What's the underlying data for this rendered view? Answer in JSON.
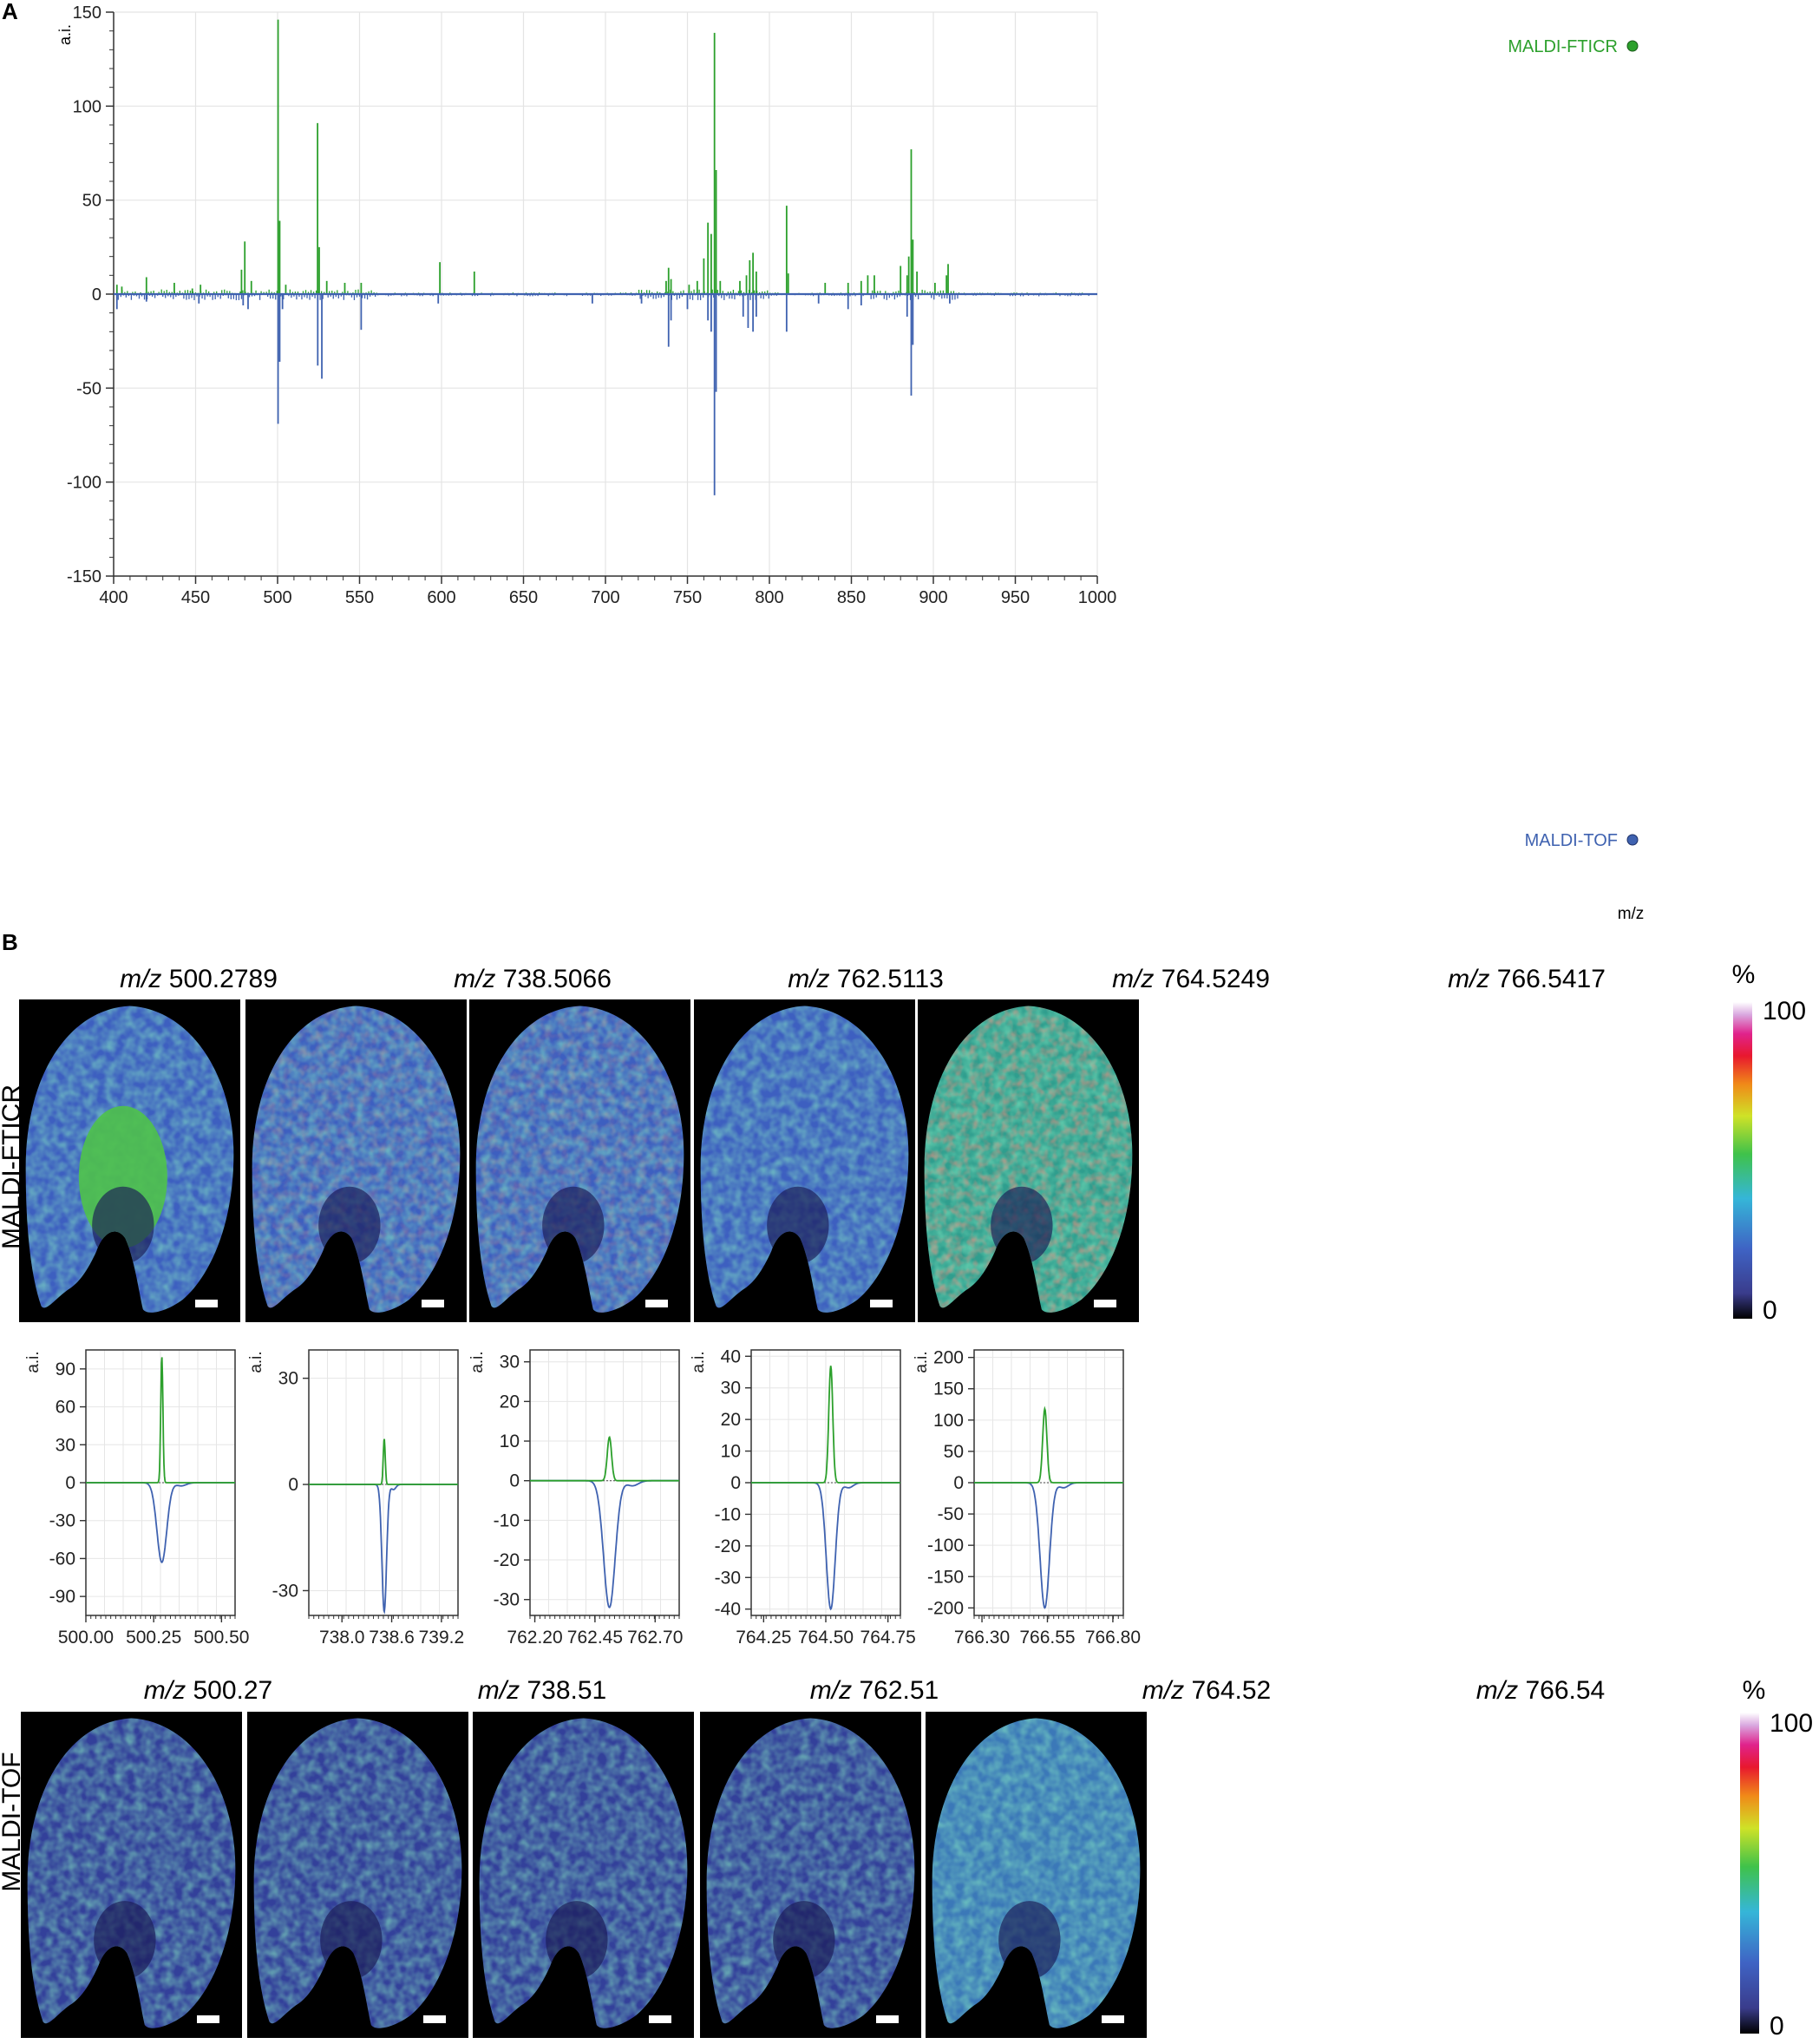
{
  "panel_a": {
    "label": "A",
    "y_unit": "a.i.",
    "x_unit": "m/z",
    "yticks": [
      150,
      100,
      50,
      0,
      -50,
      -100,
      -150
    ],
    "xticks": [
      400,
      450,
      500,
      550,
      600,
      650,
      700,
      750,
      800,
      850,
      900,
      950,
      1000
    ],
    "legend_top": "MALDI-FTICR",
    "legend_bottom": "MALDI-TOF"
  },
  "panel_b": {
    "label": "B",
    "row_fticr": "MALDI-FTICR",
    "row_tof": "MALDI-TOF",
    "fticr_titles": [
      {
        "italic": "m/z",
        "value": " 500.2789"
      },
      {
        "italic": "m/z",
        "value": " 738.5066"
      },
      {
        "italic": "m/z",
        "value": " 762.5113"
      },
      {
        "italic": "m/z",
        "value": " 764.5249"
      },
      {
        "italic": "m/z",
        "value": " 766.5417"
      }
    ],
    "tof_titles": [
      {
        "italic": "m/z",
        "value": " 500.27"
      },
      {
        "italic": "m/z",
        "value": " 738.51"
      },
      {
        "italic": "m/z",
        "value": " 762.51"
      },
      {
        "italic": "m/z",
        "value": " 764.52"
      },
      {
        "italic": "m/z",
        "value": " 766.54"
      }
    ],
    "colorbar": {
      "unit": "%",
      "max": "100",
      "min": "0"
    },
    "mini_y_unit": "a.i."
  },
  "colors": {
    "fticr": "#2ca02c",
    "tof": "#3f62b0"
  },
  "chart_data": [
    {
      "type": "line",
      "title": "",
      "xlabel": "m/z",
      "ylabel": "a.i.",
      "xlim": [
        400,
        1000
      ],
      "ylim": [
        -150,
        150
      ],
      "grid": true,
      "legend": "top-right / bottom-right",
      "series": [
        {
          "name": "MALDI-FTICR",
          "color": "#2ca02c",
          "peaks": [
            [
              402,
              5
            ],
            [
              405,
              4
            ],
            [
              420,
              9
            ],
            [
              437,
              6
            ],
            [
              448,
              3
            ],
            [
              453,
              5
            ],
            [
              478,
              13
            ],
            [
              480,
              28
            ],
            [
              484,
              7
            ],
            [
              500.3,
              146
            ],
            [
              501.3,
              39
            ],
            [
              505,
              5
            ],
            [
              524.4,
              91
            ],
            [
              525.4,
              25
            ],
            [
              530,
              7
            ],
            [
              541,
              6
            ],
            [
              551,
              6
            ],
            [
              599,
              17
            ],
            [
              620,
              12
            ],
            [
              737,
              7
            ],
            [
              738.5,
              14
            ],
            [
              740,
              8
            ],
            [
              751,
              5
            ],
            [
              756,
              7
            ],
            [
              760,
              19
            ],
            [
              762.5,
              38
            ],
            [
              764.5,
              32
            ],
            [
              766.5,
              139
            ],
            [
              767.5,
              66
            ],
            [
              770,
              7
            ],
            [
              782,
              7
            ],
            [
              786,
              10
            ],
            [
              788,
              18
            ],
            [
              790,
              22
            ],
            [
              792,
              12
            ],
            [
              810.5,
              47
            ],
            [
              811.5,
              11
            ],
            [
              834,
              6
            ],
            [
              848,
              6
            ],
            [
              856,
              7
            ],
            [
              860,
              10
            ],
            [
              864,
              10
            ],
            [
              880,
              15
            ],
            [
              884,
              10
            ],
            [
              885,
              20
            ],
            [
              886.5,
              77
            ],
            [
              887.5,
              29
            ],
            [
              890,
              12
            ],
            [
              901,
              6
            ],
            [
              908,
              10
            ],
            [
              909,
              16
            ]
          ]
        },
        {
          "name": "MALDI-TOF",
          "color": "#3f62b0",
          "peaks": [
            [
              402,
              -8
            ],
            [
              420,
              -4
            ],
            [
              452,
              -5
            ],
            [
              479,
              -6
            ],
            [
              482,
              -8
            ],
            [
              500.3,
              -69
            ],
            [
              501.3,
              -36
            ],
            [
              503,
              -8
            ],
            [
              524.5,
              -38
            ],
            [
              527,
              -45
            ],
            [
              551,
              -19
            ],
            [
              598,
              -5
            ],
            [
              692,
              -5
            ],
            [
              722,
              -5
            ],
            [
              738.5,
              -28
            ],
            [
              740,
              -14
            ],
            [
              750,
              -8
            ],
            [
              762.5,
              -14
            ],
            [
              764.5,
              -20
            ],
            [
              766.5,
              -107
            ],
            [
              767.5,
              -52
            ],
            [
              784,
              -12
            ],
            [
              787,
              -18
            ],
            [
              790,
              -20
            ],
            [
              792,
              -12
            ],
            [
              810.5,
              -20
            ],
            [
              830,
              -5
            ],
            [
              848,
              -8
            ],
            [
              856,
              -6
            ],
            [
              884,
              -12
            ],
            [
              886.5,
              -54
            ],
            [
              887.5,
              -27
            ],
            [
              910,
              -5
            ]
          ]
        }
      ]
    },
    {
      "type": "line",
      "title": "m/z 500.2789",
      "ylabel": "a.i.",
      "xlim": [
        500.0,
        500.55
      ],
      "ylim": [
        -105,
        105
      ],
      "xticks": [
        "500.00",
        "500.25",
        "500.50"
      ],
      "xtick_values": [
        500.0,
        500.25,
        500.5
      ],
      "yticks": [
        90,
        60,
        30,
        0,
        -30,
        -60,
        -90
      ],
      "series": [
        {
          "name": "MALDI-FTICR",
          "center": 500.28,
          "height": 100,
          "width": 0.004
        },
        {
          "name": "MALDI-TOF",
          "center": 500.28,
          "height": -63,
          "width": 0.018
        }
      ]
    },
    {
      "type": "line",
      "title": "m/z 738.5066",
      "ylabel": "a.i.",
      "xlim": [
        737.6,
        739.4
      ],
      "ylim": [
        -37,
        38
      ],
      "xticks": [
        "738.0",
        "738.6",
        "739.2"
      ],
      "xtick_values": [
        738.0,
        738.6,
        739.2
      ],
      "yticks": [
        30,
        0,
        -30
      ],
      "series": [
        {
          "name": "MALDI-FTICR",
          "center": 738.51,
          "height": 13,
          "width": 0.012
        },
        {
          "name": "MALDI-TOF",
          "center": 738.51,
          "height": -36,
          "width": 0.028
        }
      ]
    },
    {
      "type": "line",
      "title": "m/z 762.5113",
      "ylabel": "a.i.",
      "xlim": [
        762.18,
        762.8
      ],
      "ylim": [
        -34,
        33
      ],
      "xticks": [
        "762.20",
        "762.45",
        "762.70"
      ],
      "xtick_values": [
        762.2,
        762.45,
        762.7
      ],
      "yticks": [
        30,
        20,
        10,
        0,
        -10,
        -20,
        -30
      ],
      "series": [
        {
          "name": "MALDI-FTICR",
          "center": 762.51,
          "height": 11,
          "width": 0.009
        },
        {
          "name": "MALDI-TOF",
          "center": 762.51,
          "height": -32,
          "width": 0.024
        }
      ]
    },
    {
      "type": "line",
      "title": "m/z 764.5249",
      "ylabel": "a.i.",
      "xlim": [
        764.2,
        764.8
      ],
      "ylim": [
        -42,
        42
      ],
      "xticks": [
        "764.25",
        "764.50",
        "764.75"
      ],
      "xtick_values": [
        764.25,
        764.5,
        764.75
      ],
      "yticks": [
        40,
        30,
        20,
        10,
        0,
        -10,
        -20,
        -30,
        -40
      ],
      "series": [
        {
          "name": "MALDI-FTICR",
          "center": 764.52,
          "height": 37,
          "width": 0.008
        },
        {
          "name": "MALDI-TOF",
          "center": 764.52,
          "height": -40,
          "width": 0.018
        }
      ]
    },
    {
      "type": "line",
      "title": "m/z 766.5417",
      "ylabel": "a.i.",
      "xlim": [
        766.27,
        766.84
      ],
      "ylim": [
        -212,
        212
      ],
      "xticks": [
        "766.30",
        "766.55",
        "766.80"
      ],
      "xtick_values": [
        766.3,
        766.55,
        766.8
      ],
      "yticks": [
        200,
        150,
        100,
        50,
        0,
        -50,
        -100,
        -150,
        -200
      ],
      "series": [
        {
          "name": "MALDI-FTICR",
          "center": 766.54,
          "height": 118,
          "width": 0.008
        },
        {
          "name": "MALDI-TOF",
          "center": 766.54,
          "height": -200,
          "width": 0.018
        }
      ]
    }
  ]
}
